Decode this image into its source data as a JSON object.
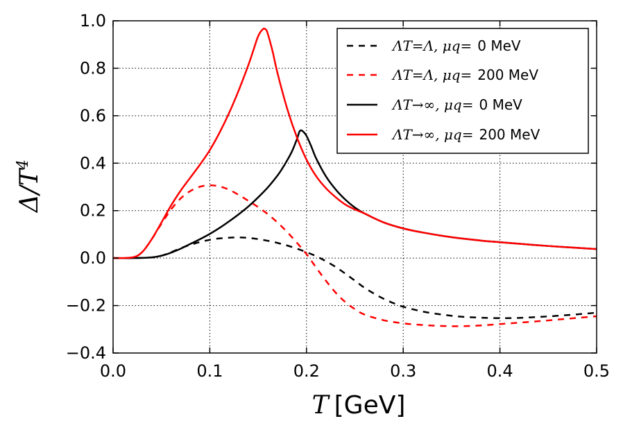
{
  "chart_data": {
    "type": "line",
    "title": "",
    "xlabel_symbol": "T",
    "xlabel_unit": "[GeV]",
    "ylabel_symbol": "Δ/T",
    "ylabel_exp": "4",
    "xlim": [
      0.0,
      0.5
    ],
    "ylim": [
      -0.4,
      1.0
    ],
    "xticks": [
      "0.0",
      "0.1",
      "0.2",
      "0.3",
      "0.4",
      "0.5"
    ],
    "xtick_values": [
      0.0,
      0.1,
      0.2,
      0.3,
      0.4,
      0.5
    ],
    "yticks": [
      "−0.4",
      "−0.2",
      "0.0",
      "0.2",
      "0.4",
      "0.6",
      "0.8",
      "1.0"
    ],
    "ytick_values": [
      -0.4,
      -0.2,
      0.0,
      0.2,
      0.4,
      0.6,
      0.8,
      1.0
    ],
    "grid": true,
    "legend_position": "top-right",
    "series": [
      {
        "name": "Λ_T = Λ, μ_q = 0 MeV",
        "legend_math": "ΛT=Λ, μq=",
        "legend_value": "0 MeV",
        "color": "#000000",
        "style": "dashed",
        "x": [
          0.0,
          0.02,
          0.04,
          0.05,
          0.06,
          0.07,
          0.08,
          0.09,
          0.1,
          0.11,
          0.12,
          0.13,
          0.14,
          0.15,
          0.16,
          0.17,
          0.18,
          0.19,
          0.2,
          0.21,
          0.22,
          0.23,
          0.24,
          0.25,
          0.26,
          0.27,
          0.28,
          0.29,
          0.3,
          0.32,
          0.34,
          0.36,
          0.38,
          0.4,
          0.42,
          0.44,
          0.46,
          0.48,
          0.5
        ],
        "y": [
          0.0,
          0.0,
          0.003,
          0.01,
          0.025,
          0.042,
          0.056,
          0.068,
          0.077,
          0.083,
          0.086,
          0.087,
          0.085,
          0.08,
          0.073,
          0.064,
          0.053,
          0.04,
          0.025,
          0.008,
          -0.013,
          -0.037,
          -0.065,
          -0.095,
          -0.125,
          -0.15,
          -0.172,
          -0.19,
          -0.205,
          -0.225,
          -0.238,
          -0.247,
          -0.251,
          -0.253,
          -0.252,
          -0.248,
          -0.243,
          -0.237,
          -0.23
        ]
      },
      {
        "name": "Λ_T = Λ, μ_q = 200 MeV",
        "legend_math": "ΛT=Λ, μq=",
        "legend_value": "200 MeV",
        "color": "#ff0000",
        "style": "dashed",
        "x": [
          0.0,
          0.02,
          0.03,
          0.04,
          0.05,
          0.06,
          0.07,
          0.08,
          0.09,
          0.1,
          0.11,
          0.12,
          0.13,
          0.14,
          0.15,
          0.16,
          0.17,
          0.18,
          0.19,
          0.2,
          0.21,
          0.22,
          0.23,
          0.24,
          0.25,
          0.26,
          0.28,
          0.3,
          0.32,
          0.34,
          0.36,
          0.38,
          0.4,
          0.42,
          0.44,
          0.46,
          0.48,
          0.5
        ],
        "y": [
          0.0,
          0.003,
          0.025,
          0.08,
          0.145,
          0.205,
          0.252,
          0.283,
          0.301,
          0.307,
          0.302,
          0.288,
          0.266,
          0.241,
          0.215,
          0.185,
          0.15,
          0.11,
          0.065,
          0.017,
          -0.04,
          -0.095,
          -0.145,
          -0.185,
          -0.215,
          -0.238,
          -0.262,
          -0.275,
          -0.282,
          -0.286,
          -0.287,
          -0.284,
          -0.278,
          -0.272,
          -0.266,
          -0.259,
          -0.252,
          -0.245
        ]
      },
      {
        "name": "Λ_T → ∞, μ_q = 0 MeV",
        "legend_math": "ΛT→∞, μq=",
        "legend_value": "0 MeV",
        "color": "#000000",
        "style": "solid",
        "x": [
          0.0,
          0.02,
          0.04,
          0.05,
          0.06,
          0.07,
          0.08,
          0.09,
          0.1,
          0.11,
          0.12,
          0.13,
          0.14,
          0.15,
          0.16,
          0.17,
          0.175,
          0.18,
          0.185,
          0.19,
          0.193,
          0.196,
          0.2,
          0.205,
          0.21,
          0.22,
          0.23,
          0.24,
          0.25,
          0.26,
          0.28,
          0.3,
          0.32,
          0.35,
          0.38,
          0.4,
          0.45,
          0.5
        ],
        "y": [
          0.0,
          0.0,
          0.003,
          0.01,
          0.023,
          0.04,
          0.06,
          0.08,
          0.102,
          0.127,
          0.155,
          0.185,
          0.218,
          0.256,
          0.298,
          0.348,
          0.378,
          0.412,
          0.45,
          0.5,
          0.535,
          0.535,
          0.515,
          0.47,
          0.42,
          0.345,
          0.29,
          0.247,
          0.213,
          0.188,
          0.15,
          0.125,
          0.108,
          0.088,
          0.074,
          0.067,
          0.051,
          0.038
        ]
      },
      {
        "name": "Λ_T → ∞, μ_q = 200 MeV",
        "legend_math": "ΛT→∞, μq=",
        "legend_value": "200 MeV",
        "color": "#ff0000",
        "style": "solid",
        "x": [
          0.0,
          0.02,
          0.03,
          0.04,
          0.05,
          0.06,
          0.07,
          0.08,
          0.09,
          0.1,
          0.11,
          0.12,
          0.13,
          0.14,
          0.145,
          0.15,
          0.155,
          0.158,
          0.16,
          0.165,
          0.17,
          0.18,
          0.19,
          0.2,
          0.21,
          0.22,
          0.23,
          0.24,
          0.25,
          0.26,
          0.28,
          0.3,
          0.32,
          0.35,
          0.38,
          0.4,
          0.45,
          0.5
        ],
        "y": [
          0.0,
          0.003,
          0.025,
          0.08,
          0.15,
          0.222,
          0.285,
          0.34,
          0.395,
          0.455,
          0.528,
          0.612,
          0.708,
          0.815,
          0.875,
          0.935,
          0.965,
          0.963,
          0.945,
          0.87,
          0.78,
          0.63,
          0.51,
          0.415,
          0.345,
          0.295,
          0.257,
          0.226,
          0.205,
          0.188,
          0.15,
          0.125,
          0.108,
          0.088,
          0.074,
          0.067,
          0.051,
          0.038
        ]
      }
    ]
  }
}
